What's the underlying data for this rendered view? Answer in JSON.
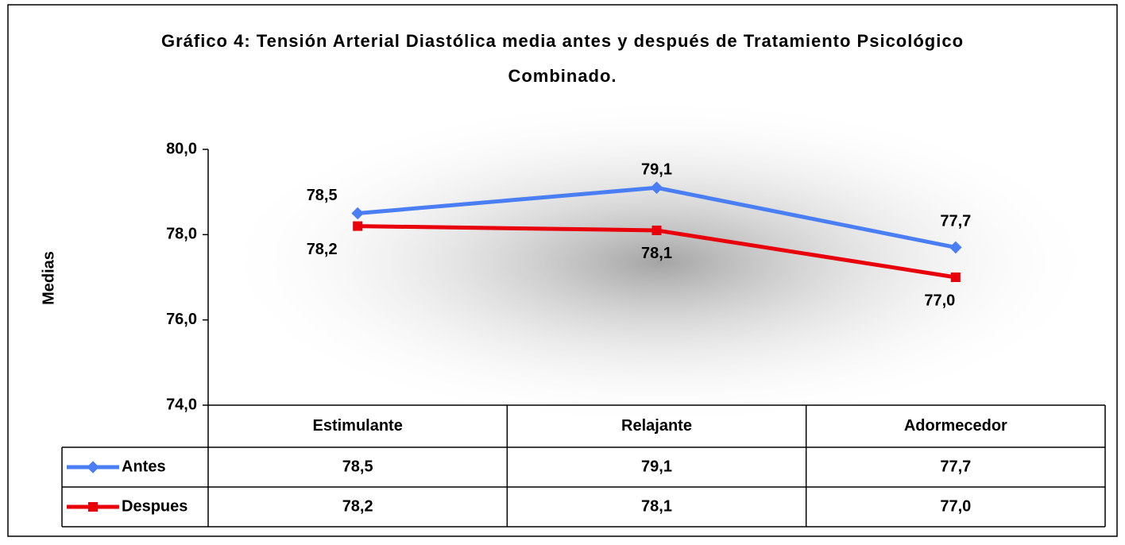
{
  "chart_data": {
    "type": "line",
    "title": "Gráfico 4: Tensión Arterial Diastólica media antes y después de Tratamiento Psicológico Combinado.",
    "y_label": "Medias",
    "categories": [
      "Estimulante",
      "Relajante",
      "Adormecedor"
    ],
    "series": [
      {
        "name": "Antes",
        "color": "#4a7ef5",
        "marker": "diamond",
        "values": [
          78.5,
          79.1,
          77.7
        ],
        "value_labels": [
          "78,5",
          "79,1",
          "77,7"
        ]
      },
      {
        "name": "Despues",
        "color": "#e8000b",
        "marker": "square",
        "values": [
          78.2,
          78.1,
          77.0
        ],
        "value_labels": [
          "78,2",
          "78,1",
          "77,0"
        ]
      }
    ],
    "ylim": [
      74,
      80
    ],
    "yticks": [
      {
        "value": 74,
        "label": "74,0"
      },
      {
        "value": 76,
        "label": "76,0"
      },
      {
        "value": 78,
        "label": "78,0"
      },
      {
        "value": 80,
        "label": "80,0"
      }
    ],
    "data_table": true
  }
}
